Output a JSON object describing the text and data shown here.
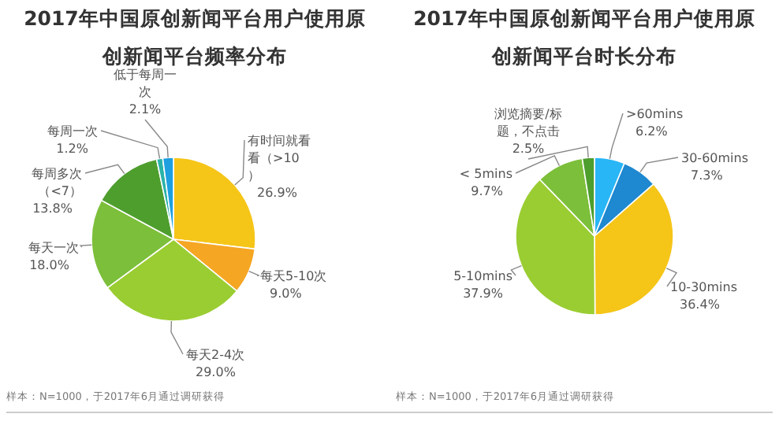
{
  "chart_data": [
    {
      "type": "pie",
      "title": "2017年中国原创新闻平台用户使用原创新闻平台频率分布",
      "categories": [
        "有时间就看看（>10）",
        "每天5-10次",
        "每天2-4次",
        "每天一次",
        "每周多次（<7）",
        "每周一次",
        "低于每周一次"
      ],
      "values": [
        26.9,
        9.0,
        29.0,
        18.0,
        13.8,
        1.2,
        2.1
      ],
      "value_labels": [
        "26.9%",
        "9.0%",
        "29.0%",
        "18.0%",
        "13.8%",
        "1.2%",
        "2.1%"
      ],
      "colors": [
        "#f5c518",
        "#f5a623",
        "#9acd32",
        "#7cbf3a",
        "#4e9e2e",
        "#2bb3a8",
        "#1e9fe0"
      ],
      "annotations": [
        "样本：N=1000，于2017年6月通过调研获得"
      ]
    },
    {
      "type": "pie",
      "title": "2017年中国原创新闻平台用户使用原创新闻平台时长分布",
      "categories": [
        ">60mins",
        "30-60mins",
        "10-30mins",
        "5-10mins",
        "< 5mins",
        "浏览摘要/标题，不点击"
      ],
      "values": [
        6.2,
        7.3,
        36.4,
        37.9,
        9.7,
        2.5
      ],
      "value_labels": [
        "6.2%",
        "7.3%",
        "36.4%",
        "37.9%",
        "9.7%",
        "2.5%"
      ],
      "colors": [
        "#29b6f6",
        "#1e88d0",
        "#f5c518",
        "#9acd32",
        "#7cbf3a",
        "#4e9e2e"
      ],
      "annotations": [
        "样本：N=1000，于2017年6月通过调研获得"
      ]
    }
  ]
}
